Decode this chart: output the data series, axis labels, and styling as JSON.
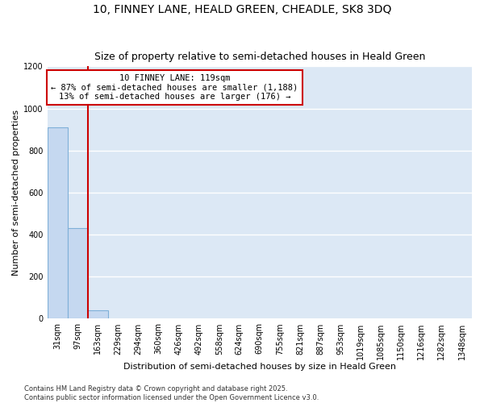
{
  "title_line1": "10, FINNEY LANE, HEALD GREEN, CHEADLE, SK8 3DQ",
  "title_line2": "Size of property relative to semi-detached houses in Heald Green",
  "xlabel": "Distribution of semi-detached houses by size in Heald Green",
  "ylabel": "Number of semi-detached properties",
  "categories": [
    "31sqm",
    "97sqm",
    "163sqm",
    "229sqm",
    "294sqm",
    "360sqm",
    "426sqm",
    "492sqm",
    "558sqm",
    "624sqm",
    "690sqm",
    "755sqm",
    "821sqm",
    "887sqm",
    "953sqm",
    "1019sqm",
    "1085sqm",
    "1150sqm",
    "1216sqm",
    "1282sqm",
    "1348sqm"
  ],
  "values": [
    910,
    430,
    40,
    0,
    0,
    0,
    0,
    0,
    0,
    0,
    0,
    0,
    0,
    0,
    0,
    0,
    0,
    0,
    0,
    0,
    0
  ],
  "bar_color": "#c5d8f0",
  "bar_edge_color": "#7fb0d8",
  "background_color": "#dce8f5",
  "grid_color": "#ffffff",
  "vline_color": "#cc0000",
  "annotation_text": "10 FINNEY LANE: 119sqm\n← 87% of semi-detached houses are smaller (1,188)\n13% of semi-detached houses are larger (176) →",
  "annotation_box_color": "#ffffff",
  "annotation_box_edge": "#cc0000",
  "ylim": [
    0,
    1200
  ],
  "yticks": [
    0,
    200,
    400,
    600,
    800,
    1000,
    1200
  ],
  "footer": "Contains HM Land Registry data © Crown copyright and database right 2025.\nContains public sector information licensed under the Open Government Licence v3.0.",
  "title_fontsize": 10,
  "subtitle_fontsize": 9,
  "label_fontsize": 8,
  "tick_fontsize": 7,
  "footer_fontsize": 6,
  "annot_fontsize": 7.5
}
